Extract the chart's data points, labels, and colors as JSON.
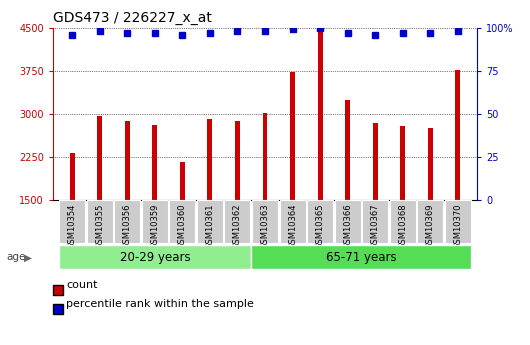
{
  "title": "GDS473 / 226227_x_at",
  "categories": [
    "GSM10354",
    "GSM10355",
    "GSM10356",
    "GSM10359",
    "GSM10360",
    "GSM10361",
    "GSM10362",
    "GSM10363",
    "GSM10364",
    "GSM10365",
    "GSM10366",
    "GSM10367",
    "GSM10368",
    "GSM10369",
    "GSM10370"
  ],
  "counts": [
    2320,
    2960,
    2870,
    2800,
    2160,
    2910,
    2880,
    3010,
    3720,
    4490,
    3240,
    2840,
    2790,
    2760,
    3760
  ],
  "percentile_ranks": [
    96,
    98,
    97,
    97,
    96,
    97,
    98,
    98,
    99,
    100,
    97,
    96,
    97,
    97,
    98
  ],
  "bar_color": "#cc0000",
  "dot_color": "#0000cc",
  "ylim_left": [
    1500,
    4500
  ],
  "ylim_right": [
    0,
    100
  ],
  "yticks_left": [
    1500,
    2250,
    3000,
    3750,
    4500
  ],
  "yticks_right": [
    0,
    25,
    50,
    75,
    100
  ],
  "group1_label": "20-29 years",
  "group2_label": "65-71 years",
  "group1_count": 7,
  "group2_count": 8,
  "group1_color": "#90ee90",
  "group2_color": "#55dd55",
  "age_label": "age",
  "legend_count_label": "count",
  "legend_pct_label": "percentile rank within the sample",
  "background_color": "#ffffff",
  "tick_bg_color": "#cccccc",
  "title_fontsize": 10,
  "tick_fontsize": 7
}
